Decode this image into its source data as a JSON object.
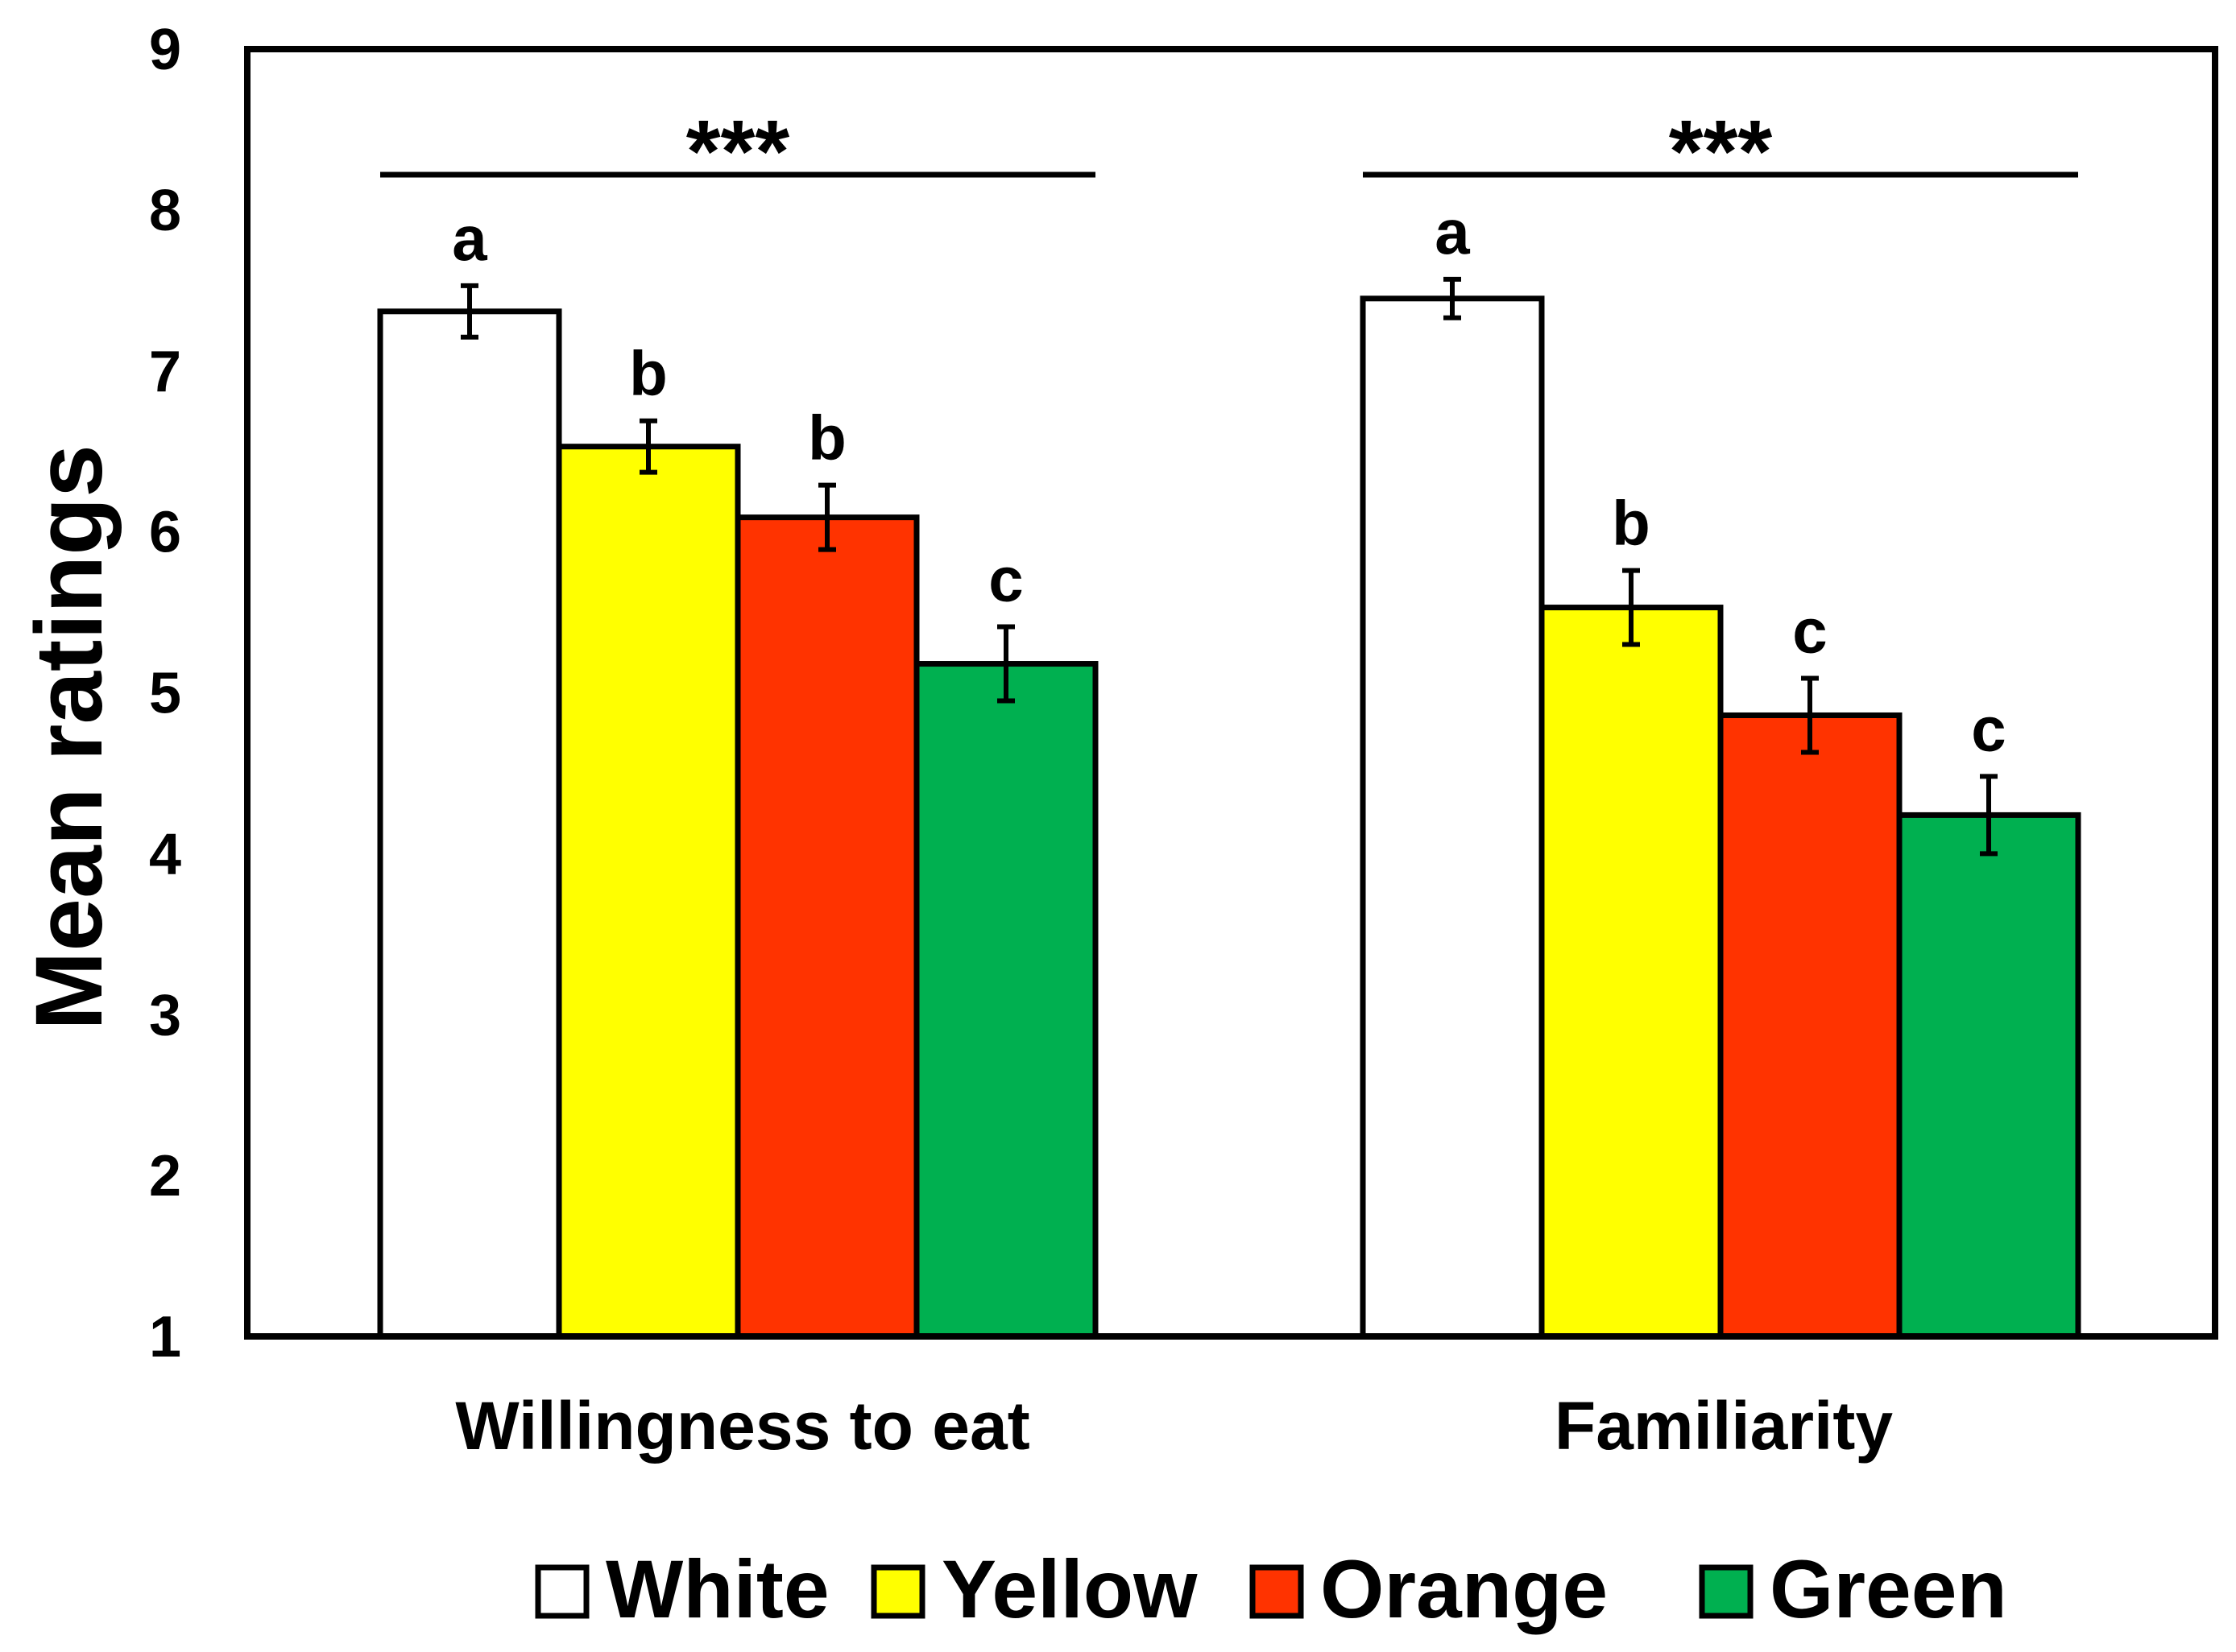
{
  "chart_data": {
    "type": "bar",
    "title": "",
    "xlabel": "",
    "ylabel": "Mean ratings",
    "ylim": [
      1,
      9
    ],
    "yticks": [
      1,
      2,
      3,
      4,
      5,
      6,
      7,
      8,
      9
    ],
    "grid": false,
    "legend_position": "bottom",
    "categories": [
      "Willingness to eat",
      "Familiarity"
    ],
    "series": [
      {
        "name": "White",
        "color": "#FFFFFF",
        "values": [
          7.37,
          7.45
        ],
        "errors": [
          0.16,
          0.12
        ],
        "letters": [
          "a",
          "a"
        ]
      },
      {
        "name": "Yellow",
        "color": "#FFFF00",
        "values": [
          6.53,
          5.53
        ],
        "errors": [
          0.16,
          0.23
        ],
        "letters": [
          "b",
          "b"
        ]
      },
      {
        "name": "Orange",
        "color": "#FF3300",
        "values": [
          6.09,
          4.86
        ],
        "errors": [
          0.2,
          0.23
        ],
        "letters": [
          "b",
          "c"
        ]
      },
      {
        "name": "Green",
        "color": "#00B050",
        "values": [
          5.18,
          4.24
        ],
        "errors": [
          0.23,
          0.24
        ],
        "letters": [
          "c",
          "c"
        ]
      }
    ],
    "significance": [
      "***",
      "***"
    ]
  }
}
